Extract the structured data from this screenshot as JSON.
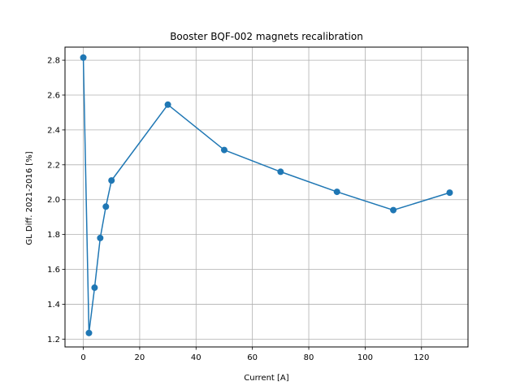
{
  "chart_data": {
    "type": "line",
    "title": "Booster BQF-002 magnets recalibration",
    "xlabel": "Current [A]",
    "ylabel": "GL Diff. 2021-2016 [%]",
    "xlim": [
      -6.5,
      136.5
    ],
    "ylim": [
      1.155,
      2.875
    ],
    "grid": true,
    "xticks": [
      0,
      20,
      40,
      60,
      80,
      100,
      120
    ],
    "yticks": [
      1.2,
      1.4,
      1.6,
      1.8,
      2.0,
      2.2,
      2.4,
      2.6,
      2.8
    ],
    "xtick_labels": [
      "0",
      "20",
      "40",
      "60",
      "80",
      "100",
      "120"
    ],
    "ytick_labels": [
      "1.2",
      "1.4",
      "1.6",
      "1.8",
      "2.0",
      "2.2",
      "2.4",
      "2.6",
      "2.8"
    ],
    "series": [
      {
        "x": [
          0,
          2,
          4,
          6,
          8,
          10,
          30,
          50,
          70,
          90,
          110,
          130
        ],
        "y": [
          2.815,
          1.235,
          1.495,
          1.78,
          1.96,
          2.11,
          2.545,
          2.285,
          2.16,
          2.045,
          1.94,
          2.04
        ],
        "color": "#1f77b4",
        "marker": "circle"
      }
    ]
  }
}
